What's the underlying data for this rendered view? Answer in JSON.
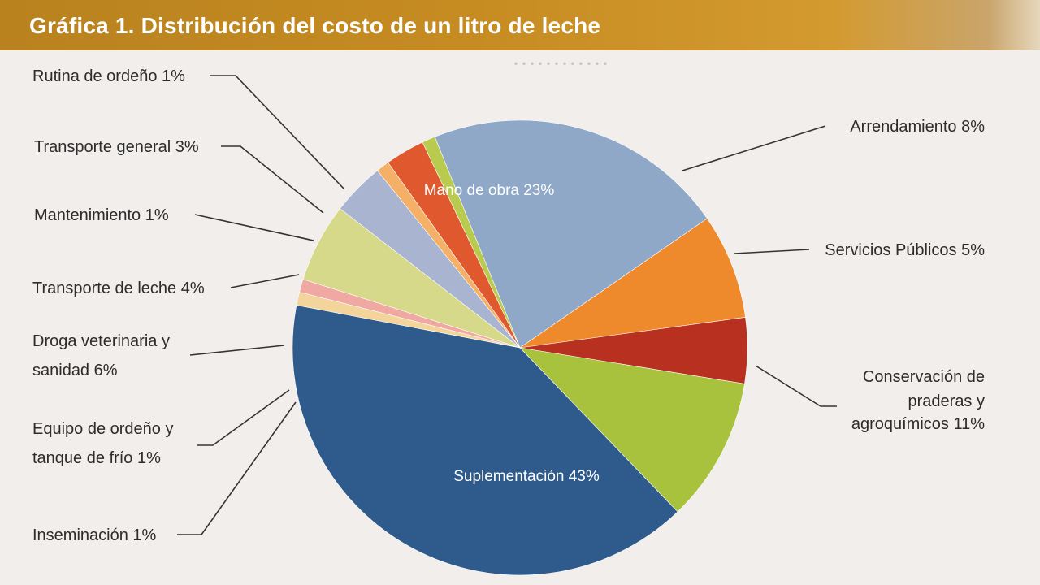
{
  "header": {
    "title": "Gráfica 1. Distribución del costo de un litro de leche"
  },
  "chart_data": {
    "type": "pie",
    "title": "Gráfica 1. Distribución del costo de un litro de leche",
    "slices": [
      {
        "label": "Mano de obra 23%",
        "value": 23,
        "color": "#8fa8c8"
      },
      {
        "label": "Arrendamiento 8%",
        "value": 8,
        "color": "#ef8a2c"
      },
      {
        "label": "Servicios Públicos 5%",
        "value": 5,
        "color": "#b8301f"
      },
      {
        "label": "Conservación de praderas y agroquímicos 11%",
        "value": 11,
        "color": "#a8c23d"
      },
      {
        "label": "Suplementación 43%",
        "value": 43,
        "color": "#2e5a8c"
      },
      {
        "label": "Inseminación 1%",
        "value": 1,
        "color": "#f3d49a"
      },
      {
        "label": "Equipo de ordeño y tanque de frío 1%",
        "value": 1,
        "color": "#f0a8a2"
      },
      {
        "label": "Droga veterinaria y sanidad 6%",
        "value": 6,
        "color": "#d6d98a"
      },
      {
        "label": "Transporte de leche 4%",
        "value": 4,
        "color": "#a8b4d0"
      },
      {
        "label": "Mantenimiento 1%",
        "value": 1,
        "color": "#f4b066"
      },
      {
        "label": "Transporte general 3%",
        "value": 3,
        "color": "#e0582e"
      },
      {
        "label": "Rutina de ordeño 1%",
        "value": 1,
        "color": "#b8cb4e"
      }
    ]
  },
  "labels": {
    "rutina": "Rutina de ordeño 1%",
    "transporte_general": "Transporte general 3%",
    "mantenimiento": "Mantenimiento 1%",
    "transporte_leche": "Transporte de leche 4%",
    "droga_1": "Droga veterinaria y",
    "droga_2": "sanidad 6%",
    "equipo_1": "Equipo de ordeño y",
    "equipo_2": "tanque de frío 1%",
    "inseminacion": "Inseminación 1%",
    "arrendamiento": "Arrendamiento 8%",
    "servicios": "Servicios Públicos 5%",
    "conservacion_1": "Conservación de",
    "conservacion_2": "praderas y",
    "conservacion_3": "agroquímicos 11%",
    "mano_obra": "Mano de obra 23%",
    "suplementacion": "Suplementación 43%"
  }
}
